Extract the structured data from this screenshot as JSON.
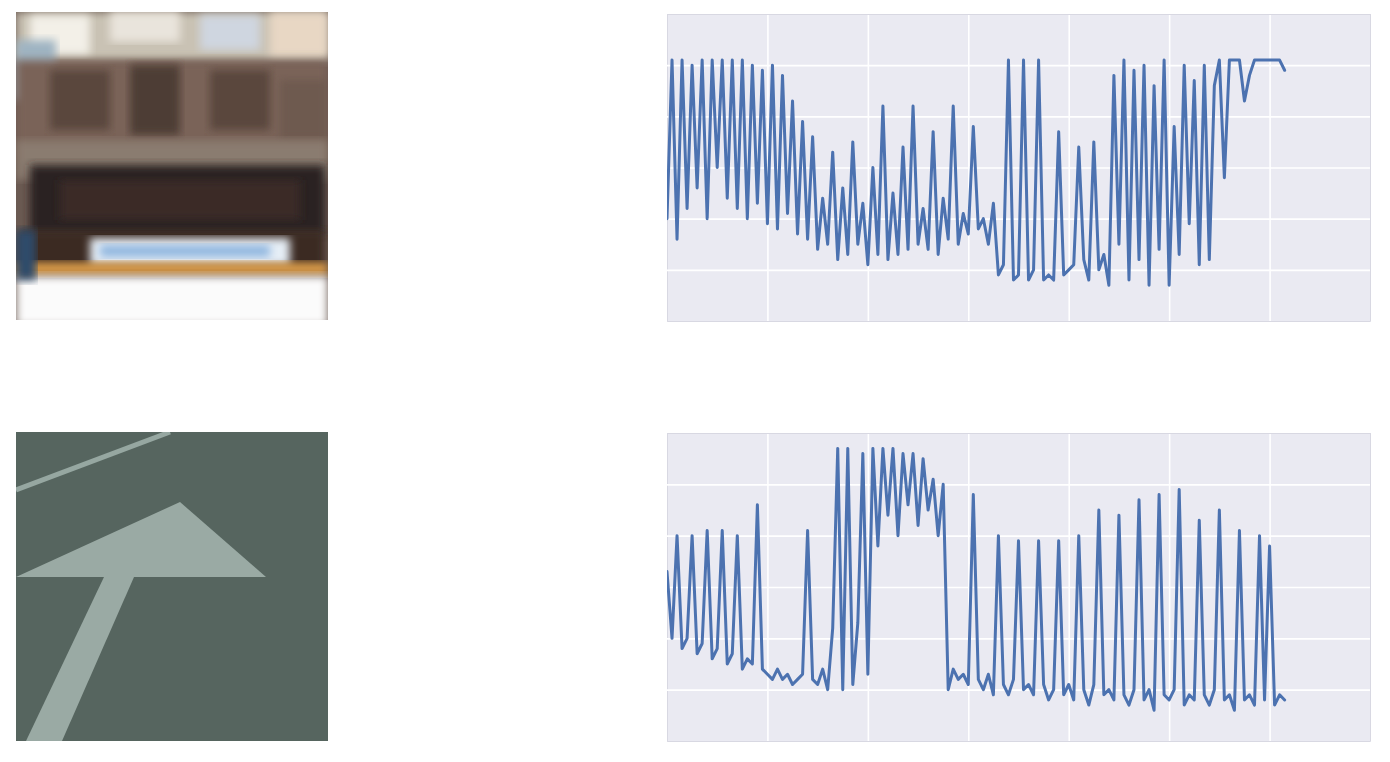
{
  "chart_data": [
    {
      "type": "line",
      "x": [
        0,
        0.05,
        0.1,
        0.15,
        0.2,
        0.25,
        0.3,
        0.35,
        0.4,
        0.45,
        0.5,
        0.55,
        0.6,
        0.65,
        0.7,
        0.75,
        0.8,
        0.85,
        0.9,
        0.95,
        1,
        1.05,
        1.1,
        1.15,
        1.2,
        1.25,
        1.3,
        1.35,
        1.4,
        1.45,
        1.5,
        1.55,
        1.6,
        1.65,
        1.7,
        1.75,
        1.8,
        1.85,
        1.9,
        1.95,
        2,
        2.05,
        2.1,
        2.15,
        2.2,
        2.25,
        2.3,
        2.35,
        2.4,
        2.45,
        2.5,
        2.55,
        2.6,
        2.65,
        2.7,
        2.75,
        2.8,
        2.85,
        2.9,
        2.95,
        3,
        3.05,
        3.1,
        3.15,
        3.2,
        3.25,
        3.3,
        3.35,
        3.4,
        3.45,
        3.5,
        3.55,
        3.6,
        3.65,
        3.7,
        3.75,
        3.8,
        3.85,
        3.9,
        3.95,
        4,
        4.05,
        4.1,
        4.15,
        4.2,
        4.25,
        4.3,
        4.35,
        4.4,
        4.45,
        4.5,
        4.55,
        4.6,
        4.65,
        4.7,
        4.75,
        4.8,
        4.85,
        4.9,
        4.95,
        5,
        5.05,
        5.1,
        5.15,
        5.2,
        5.25,
        5.3,
        5.35,
        5.4,
        5.45,
        5.5,
        5.55,
        5.6,
        5.65,
        5.7,
        5.75,
        5.8,
        5.85,
        5.9,
        5.95,
        6,
        6.05,
        6.1,
        6.15
      ],
      "values": [
        2.0,
        5.1,
        1.6,
        5.1,
        2.2,
        5.0,
        2.6,
        5.1,
        2.0,
        5.1,
        3.0,
        5.1,
        2.4,
        5.1,
        2.2,
        5.1,
        2.0,
        5.0,
        2.3,
        4.9,
        1.9,
        5.0,
        1.8,
        4.8,
        2.1,
        4.3,
        1.7,
        3.9,
        1.6,
        3.6,
        1.4,
        2.4,
        1.5,
        3.3,
        1.2,
        2.6,
        1.3,
        3.5,
        1.5,
        2.3,
        1.1,
        3.0,
        1.3,
        4.2,
        1.2,
        2.5,
        1.3,
        3.4,
        1.4,
        4.2,
        1.5,
        2.2,
        1.4,
        3.7,
        1.3,
        2.4,
        1.6,
        4.2,
        1.5,
        2.1,
        1.7,
        3.8,
        1.8,
        2.0,
        1.5,
        2.3,
        0.9,
        1.1,
        5.1,
        0.8,
        0.9,
        5.1,
        0.8,
        1.0,
        5.1,
        0.8,
        0.9,
        0.8,
        3.7,
        0.9,
        1.0,
        1.1,
        3.4,
        1.2,
        0.8,
        3.5,
        1.0,
        1.3,
        0.7,
        4.8,
        1.5,
        5.1,
        0.8,
        4.9,
        1.2,
        5.0,
        0.7,
        4.6,
        1.4,
        5.1,
        0.7,
        3.8,
        1.3,
        5.0,
        1.9,
        4.7,
        1.1,
        5.0,
        1.2,
        4.6,
        5.1,
        2.8,
        5.1,
        5.1,
        5.1,
        4.3,
        4.8,
        5.1,
        5.1,
        5.1,
        5.1,
        5.1,
        5.1,
        4.9
      ],
      "color": "#4c72b0",
      "xlim": [
        0,
        7
      ],
      "ylim": [
        0,
        6
      ],
      "xticks": [
        1,
        2,
        3,
        4,
        5,
        6
      ],
      "yticks": [
        1,
        2,
        3,
        4,
        5
      ],
      "grid": true,
      "tick_labels": false
    },
    {
      "type": "line",
      "x": [
        0,
        0.05,
        0.1,
        0.15,
        0.2,
        0.25,
        0.3,
        0.35,
        0.4,
        0.45,
        0.5,
        0.55,
        0.6,
        0.65,
        0.7,
        0.75,
        0.8,
        0.85,
        0.9,
        0.95,
        1,
        1.05,
        1.1,
        1.15,
        1.2,
        1.25,
        1.3,
        1.35,
        1.4,
        1.45,
        1.5,
        1.55,
        1.6,
        1.65,
        1.7,
        1.75,
        1.8,
        1.85,
        1.9,
        1.95,
        2,
        2.05,
        2.1,
        2.15,
        2.2,
        2.25,
        2.3,
        2.35,
        2.4,
        2.45,
        2.5,
        2.55,
        2.6,
        2.65,
        2.7,
        2.75,
        2.8,
        2.85,
        2.9,
        2.95,
        3,
        3.05,
        3.1,
        3.15,
        3.2,
        3.25,
        3.3,
        3.35,
        3.4,
        3.45,
        3.5,
        3.55,
        3.6,
        3.65,
        3.7,
        3.75,
        3.8,
        3.85,
        3.9,
        3.95,
        4,
        4.05,
        4.1,
        4.15,
        4.2,
        4.25,
        4.3,
        4.35,
        4.4,
        4.45,
        4.5,
        4.55,
        4.6,
        4.65,
        4.7,
        4.75,
        4.8,
        4.85,
        4.9,
        4.95,
        5,
        5.05,
        5.1,
        5.15,
        5.2,
        5.25,
        5.3,
        5.35,
        5.4,
        5.45,
        5.5,
        5.55,
        5.6,
        5.65,
        5.7,
        5.75,
        5.8,
        5.85,
        5.9,
        5.95,
        6,
        6.05,
        6.1,
        6.15
      ],
      "values": [
        3.3,
        2.0,
        4.0,
        1.8,
        2.0,
        4.0,
        1.7,
        1.9,
        4.1,
        1.6,
        1.8,
        4.1,
        1.5,
        1.7,
        4.0,
        1.4,
        1.6,
        1.5,
        4.6,
        1.4,
        1.3,
        1.2,
        1.4,
        1.2,
        1.3,
        1.1,
        1.2,
        1.3,
        4.1,
        1.2,
        1.1,
        1.4,
        1.0,
        2.2,
        5.7,
        1.0,
        5.7,
        1.1,
        2.3,
        5.6,
        1.3,
        5.7,
        3.8,
        5.7,
        4.4,
        5.7,
        4.0,
        5.6,
        4.6,
        5.6,
        4.2,
        5.5,
        4.5,
        5.1,
        4.0,
        5.0,
        1.0,
        1.4,
        1.2,
        1.3,
        1.1,
        4.8,
        1.2,
        1.0,
        1.3,
        0.9,
        4.0,
        1.1,
        0.9,
        1.2,
        3.9,
        1.0,
        1.1,
        0.9,
        3.9,
        1.1,
        0.8,
        1.0,
        3.9,
        0.9,
        1.1,
        0.8,
        4.0,
        1.0,
        0.7,
        1.1,
        4.5,
        0.9,
        1.0,
        0.8,
        4.4,
        0.9,
        0.7,
        1.0,
        4.7,
        0.8,
        1.0,
        0.6,
        4.8,
        0.9,
        0.8,
        1.0,
        4.9,
        0.7,
        0.9,
        0.8,
        4.3,
        0.9,
        0.7,
        1.0,
        4.5,
        0.8,
        0.9,
        0.6,
        4.1,
        0.8,
        0.9,
        0.7,
        4.0,
        0.8,
        3.8,
        0.7,
        0.9,
        0.8
      ],
      "color": "#4c72b0",
      "xlim": [
        0,
        7
      ],
      "ylim": [
        0,
        6
      ],
      "xticks": [
        1,
        2,
        3,
        4,
        5,
        6
      ],
      "yticks": [
        1,
        2,
        3,
        4,
        5
      ],
      "grid": true,
      "tick_labels": false
    }
  ]
}
